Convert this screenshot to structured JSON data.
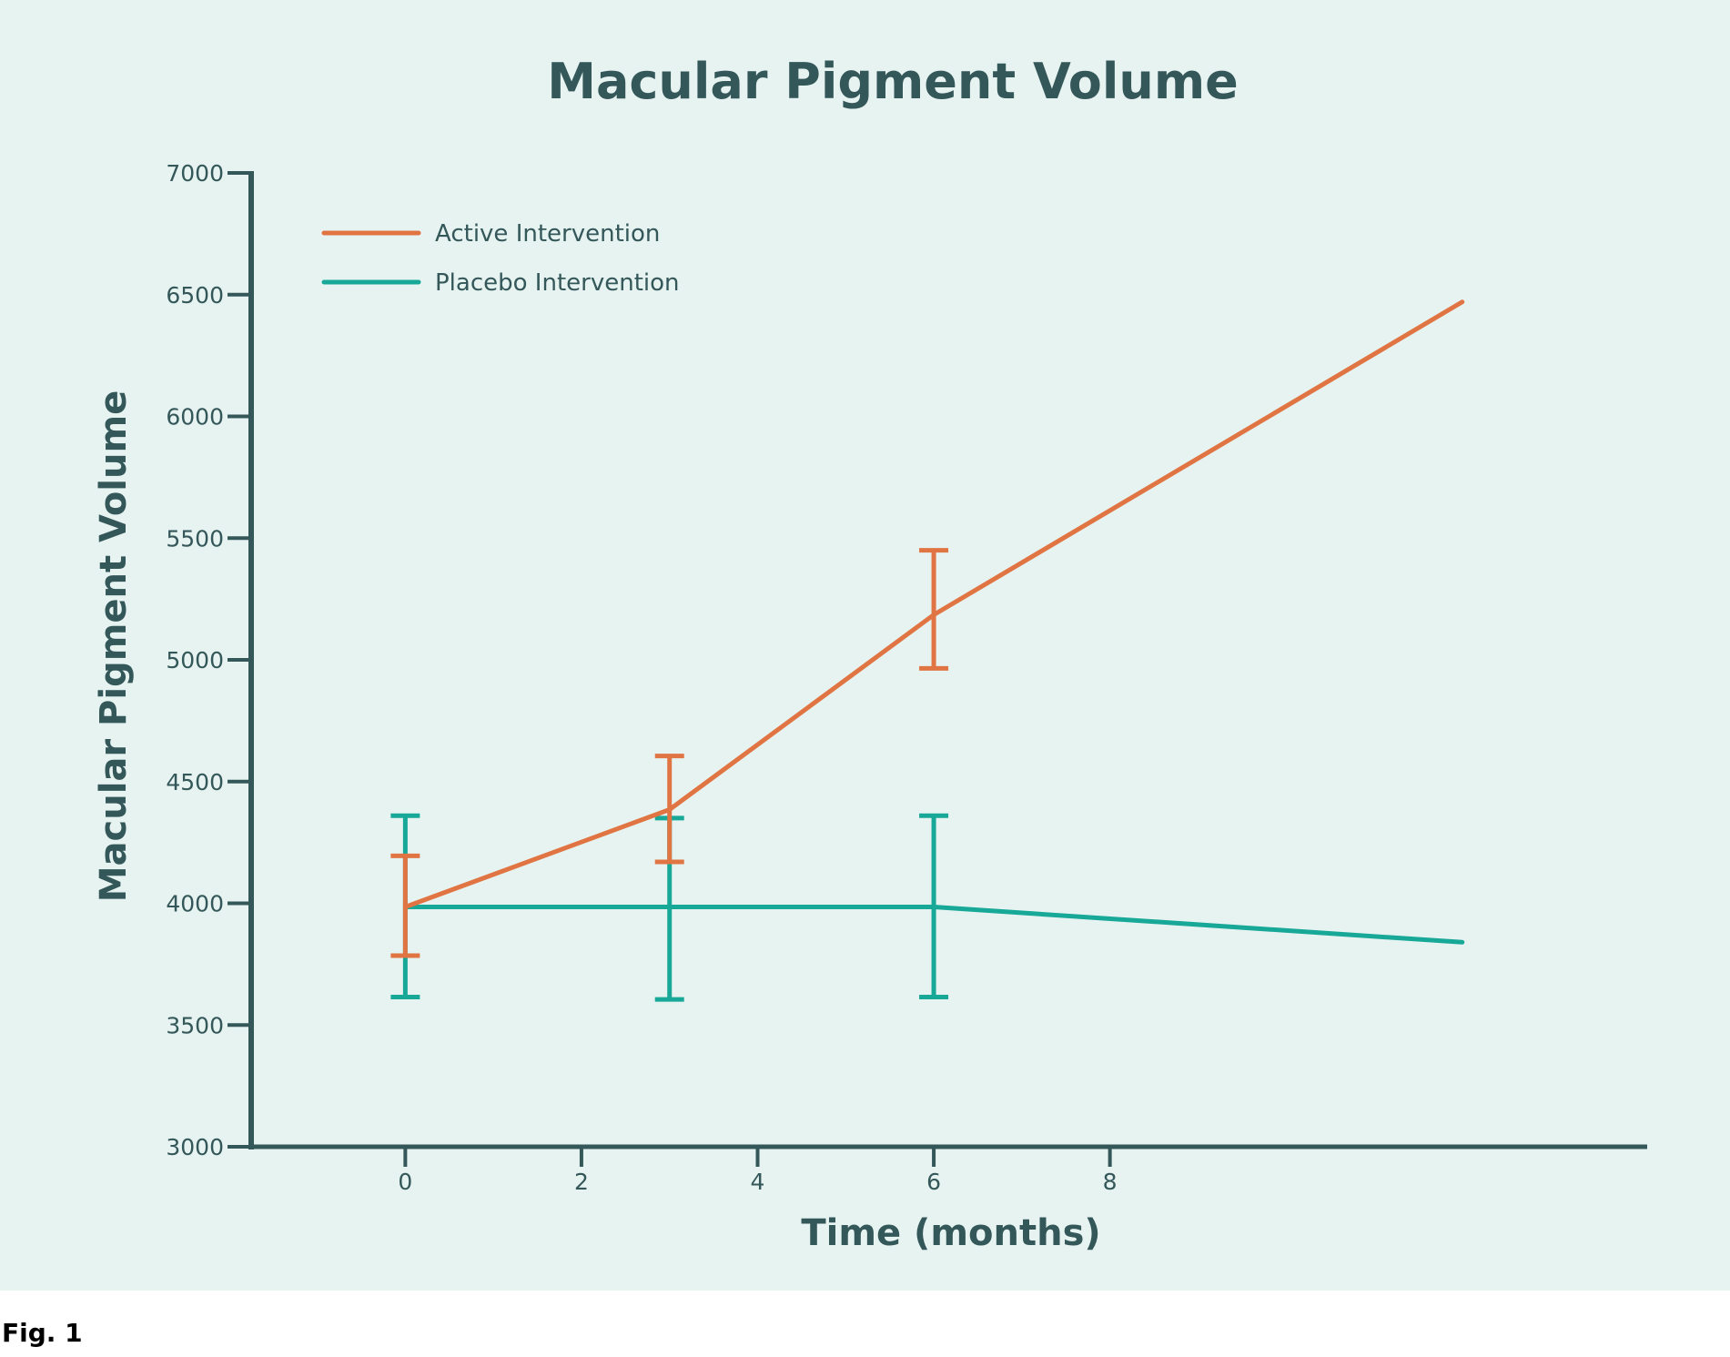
{
  "chart_data": {
    "type": "line",
    "title": "Macular Pigment Volume",
    "xlabel": "Time (months)",
    "ylabel": "Macular Pigment Volume",
    "xlim": [
      -1.75,
      14.1
    ],
    "ylim": [
      3000,
      7000
    ],
    "xticks": [
      0,
      2,
      4,
      6,
      8
    ],
    "yticks": [
      3000,
      3500,
      4000,
      4500,
      5000,
      5500,
      6000,
      6500,
      7000
    ],
    "grid": false,
    "legend": "top-left",
    "series": [
      {
        "name": "Active Intervention",
        "color": "#e07543",
        "x": [
          0,
          3,
          6,
          12
        ],
        "y": [
          3985,
          4385,
          5185,
          6470
        ],
        "error_low": [
          3785,
          4170,
          4965,
          null
        ],
        "error_high": [
          4195,
          4605,
          5450,
          null
        ]
      },
      {
        "name": "Placebo Intervention",
        "color": "#17a898",
        "x": [
          0,
          3,
          6,
          12
        ],
        "y": [
          3985,
          3985,
          3985,
          3840
        ],
        "error_low": [
          3615,
          3605,
          3615,
          null
        ],
        "error_high": [
          4360,
          4350,
          4360,
          null
        ]
      }
    ]
  },
  "caption": "Fig. 1",
  "colors": {
    "background": "#e7f3f0",
    "axis": "#34575a",
    "text": "#34575a"
  }
}
